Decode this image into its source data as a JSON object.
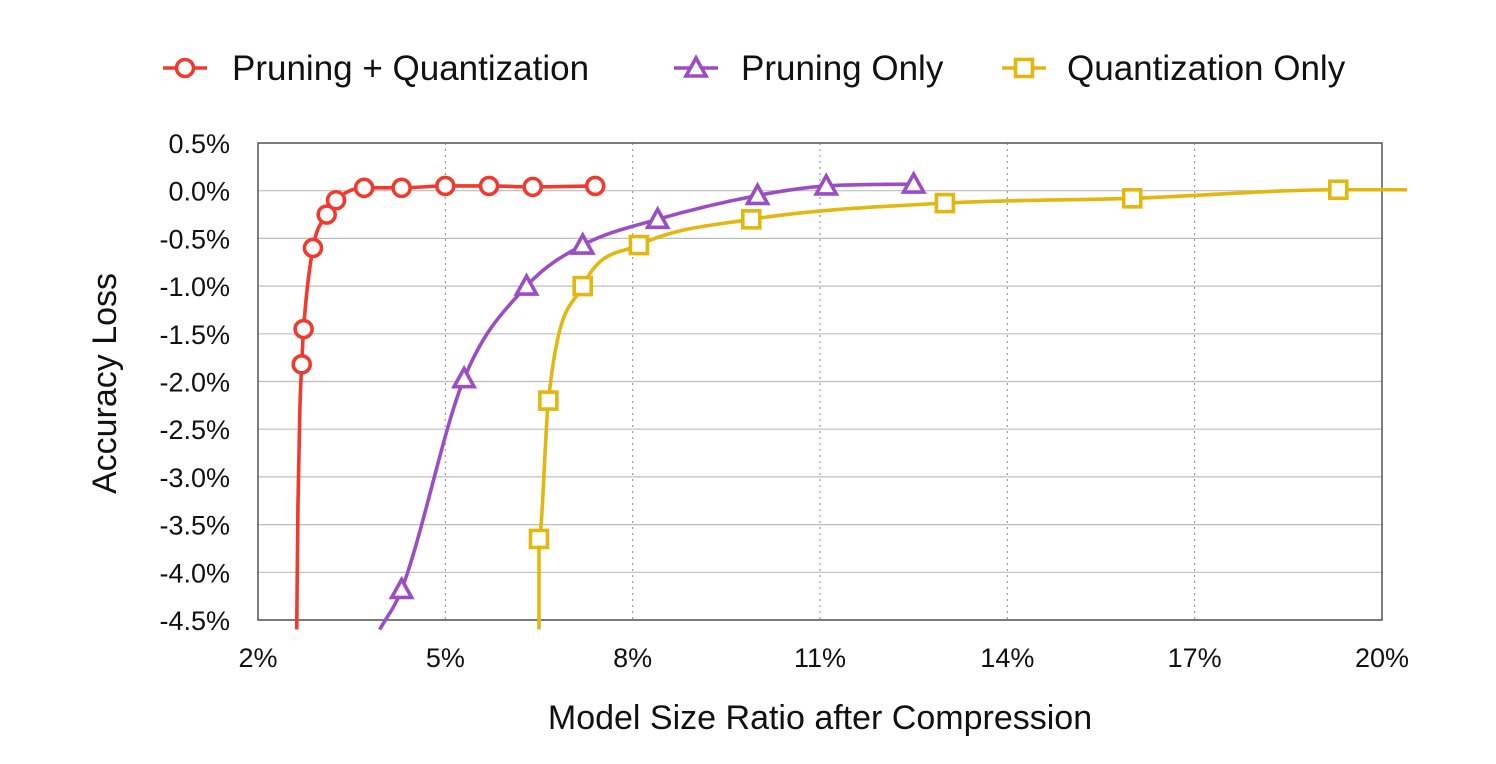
{
  "chart_data": {
    "type": "line",
    "title": "",
    "xlabel": "Model Size Ratio after Compression",
    "ylabel": "Accuracy Loss",
    "xlim": [
      2,
      20
    ],
    "ylim": [
      -4.5,
      0.5
    ],
    "x_ticks": [
      2,
      5,
      8,
      11,
      14,
      17,
      20
    ],
    "x_tick_labels": [
      "2%",
      "5%",
      "8%",
      "11%",
      "14%",
      "17%",
      "20%"
    ],
    "y_ticks": [
      0.5,
      0.0,
      -0.5,
      -1.0,
      -1.5,
      -2.0,
      -2.5,
      -3.0,
      -3.5,
      -4.0,
      -4.5
    ],
    "y_tick_labels": [
      "0.5%",
      "0.0%",
      "-0.5%",
      "-1.0%",
      "-1.5%",
      "-2.0%",
      "-2.5%",
      "-3.0%",
      "-3.5%",
      "-4.0%",
      "-4.5%"
    ],
    "grid": "vertical dotted, horizontal solid",
    "legend_position": "top",
    "series": [
      {
        "name": "Pruning + Quantization",
        "color": "#f03a2f",
        "marker": "circle",
        "x": [
          2.7,
          2.73,
          2.88,
          3.1,
          3.25,
          3.7,
          4.3,
          5.0,
          5.7,
          6.4,
          7.4
        ],
        "y": [
          -1.82,
          -1.45,
          -0.6,
          -0.25,
          -0.1,
          0.03,
          0.03,
          0.05,
          0.05,
          0.04,
          0.05
        ],
        "curve_x": [
          2.62,
          2.64,
          2.67,
          2.7,
          2.73,
          2.88,
          3.1,
          3.25,
          3.7,
          4.3,
          5.0,
          5.7,
          6.4,
          7.4
        ],
        "curve_y": [
          -4.6,
          -3.3,
          -2.3,
          -1.82,
          -1.45,
          -0.6,
          -0.25,
          -0.1,
          0.03,
          0.03,
          0.05,
          0.05,
          0.04,
          0.05
        ]
      },
      {
        "name": "Pruning Only",
        "color": "#9b4dc6",
        "marker": "triangle",
        "x": [
          4.3,
          5.3,
          6.3,
          7.2,
          8.4,
          10.0,
          11.1,
          12.5
        ],
        "y": [
          -4.18,
          -1.97,
          -1.0,
          -0.57,
          -0.3,
          -0.05,
          0.05,
          0.07
        ],
        "curve_x": [
          3.95,
          4.3,
          5.3,
          6.3,
          7.2,
          8.4,
          10.0,
          11.1,
          12.5
        ],
        "curve_y": [
          -4.6,
          -4.18,
          -1.97,
          -1.0,
          -0.57,
          -0.3,
          -0.05,
          0.05,
          0.07
        ],
        "curve_end": 12.5
      },
      {
        "name": "Quantization Only",
        "color": "#e2b70f",
        "marker": "square",
        "x": [
          6.5,
          6.65,
          7.2,
          8.1,
          9.9,
          13.0,
          16.0,
          19.3
        ],
        "y": [
          -3.65,
          -2.2,
          -1.0,
          -0.57,
          -0.3,
          -0.13,
          -0.08,
          0.01
        ],
        "curve_x": [
          6.5,
          6.5,
          6.65,
          7.2,
          8.1,
          9.9,
          13.0,
          16.0,
          19.3,
          20.4
        ],
        "curve_y": [
          -4.6,
          -3.65,
          -2.2,
          -1.0,
          -0.57,
          -0.3,
          -0.13,
          -0.08,
          0.01,
          0.01
        ]
      }
    ]
  }
}
